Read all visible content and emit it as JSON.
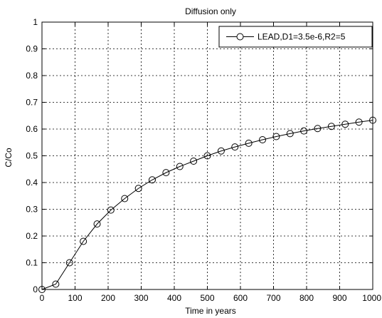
{
  "chart_data": {
    "type": "line",
    "title": "Diffusion only",
    "xlabel": "Time in years",
    "ylabel": "C/Co",
    "xlim": [
      0,
      1000
    ],
    "ylim": [
      0,
      1
    ],
    "xticks": [
      0,
      100,
      200,
      300,
      400,
      500,
      600,
      700,
      800,
      900,
      1000
    ],
    "yticks": [
      0,
      0.1,
      0.2,
      0.3,
      0.4,
      0.5,
      0.6,
      0.7,
      0.8,
      0.9,
      1
    ],
    "xtick_labels": [
      "0",
      "100",
      "200",
      "300",
      "400",
      "500",
      "600",
      "700",
      "800",
      "900",
      "1000"
    ],
    "ytick_labels": [
      "0",
      "0.1",
      "0.2",
      "0.3",
      "0.4",
      "0.5",
      "0.6",
      "0.7",
      "0.8",
      "0.9",
      "1"
    ],
    "grid": true,
    "legend_position": "top-right",
    "series": [
      {
        "name": "LEAD,D1=3.5e-6,R2=5",
        "color": "#000000",
        "marker": "circle",
        "x": [
          0,
          41.7,
          83.3,
          125,
          166.7,
          208.3,
          250,
          291.7,
          333.3,
          375,
          416.7,
          458.3,
          500,
          541.7,
          583.3,
          625,
          666.7,
          708.3,
          750,
          791.7,
          833.3,
          875,
          916.7,
          958.3,
          1000
        ],
        "y": [
          0,
          0.02,
          0.1,
          0.18,
          0.245,
          0.297,
          0.34,
          0.378,
          0.41,
          0.437,
          0.46,
          0.48,
          0.5,
          0.518,
          0.533,
          0.547,
          0.56,
          0.572,
          0.583,
          0.593,
          0.602,
          0.61,
          0.618,
          0.626,
          0.633
        ]
      }
    ]
  }
}
